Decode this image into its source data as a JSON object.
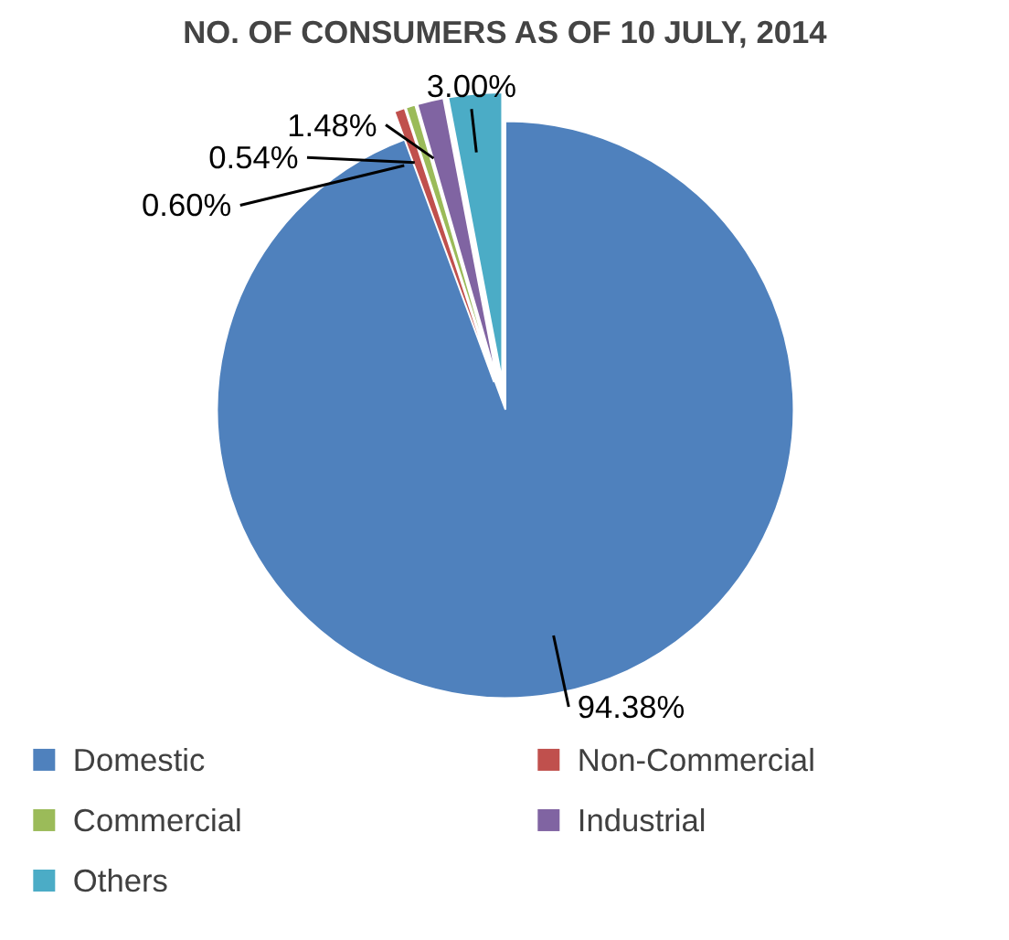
{
  "chart_data": {
    "type": "pie",
    "title": "NO. OF CONSUMERS AS OF 10 JULY, 2014",
    "categories": [
      "Domestic",
      "Non-Commercial",
      "Commercial",
      "Industrial",
      "Others"
    ],
    "values": [
      94.38,
      0.6,
      0.54,
      1.48,
      3.0
    ],
    "colors": [
      "#4f81bd",
      "#c0504d",
      "#9bbb59",
      "#8064a2",
      "#4bacc6"
    ],
    "value_labels": [
      "94.38%",
      "0.60%",
      "0.54%",
      "1.48%",
      "3.00%"
    ],
    "legend": "bottom"
  }
}
